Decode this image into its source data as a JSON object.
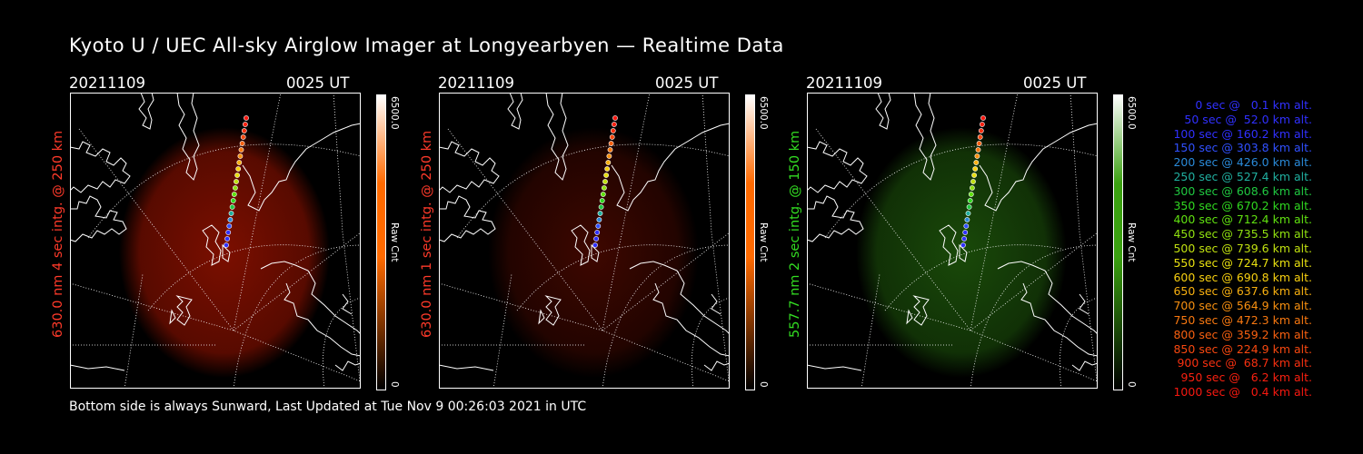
{
  "title": "Kyoto U / UEC All-sky Airglow Imager at Longyearbyen — Realtime Data",
  "footer": "Bottom side is always Sunward, Last Updated at Tue Nov  9 00:26:03 2021 in UTC",
  "panels": [
    {
      "date": "20211109",
      "time": "0025 UT",
      "ylabel": "630.0 nm 4 sec intg. @ 250 km",
      "label_color": "#ff3a2a",
      "cbar_max": "6500.0",
      "cbar_unit": "Raw Cnt",
      "cbar_min": "0",
      "glow_color": "#b01500",
      "glow_level": 0.5,
      "cbar_top_color": "#ff6a00"
    },
    {
      "date": "20211109",
      "time": "0025 UT",
      "ylabel": "630.0 nm 1 sec intg. @ 250 km",
      "label_color": "#ff3a2a",
      "cbar_max": "6500.0",
      "cbar_unit": "Raw Cnt",
      "cbar_min": "0",
      "glow_color": "#8a1000",
      "glow_level": 0.25,
      "cbar_top_color": "#ff6a00"
    },
    {
      "date": "20211109",
      "time": "0025 UT",
      "ylabel": "557.7 nm 2 sec intg. @ 150 km",
      "label_color": "#33dd22",
      "cbar_max": "6500.0",
      "cbar_unit": "Raw Cnt",
      "cbar_min": "0",
      "glow_color": "#2a7a10",
      "glow_level": 0.4,
      "cbar_top_color": "#3aa010"
    }
  ],
  "legend": [
    {
      "text": "0 sec @   0.1 km alt.",
      "color": "#3030ff"
    },
    {
      "text": "50 sec @  52.0 km alt.",
      "color": "#3030ff"
    },
    {
      "text": "100 sec @ 160.2 km alt.",
      "color": "#3030ff"
    },
    {
      "text": "150 sec @ 303.8 km alt.",
      "color": "#3050ff"
    },
    {
      "text": "200 sec @ 426.0 km alt.",
      "color": "#2a8ad8"
    },
    {
      "text": "250 sec @ 527.4 km alt.",
      "color": "#20b0a0"
    },
    {
      "text": "300 sec @ 608.6 km alt.",
      "color": "#20c840"
    },
    {
      "text": "350 sec @ 670.2 km alt.",
      "color": "#30d820"
    },
    {
      "text": "400 sec @ 712.4 km alt.",
      "color": "#60e010"
    },
    {
      "text": "450 sec @ 735.5 km alt.",
      "color": "#90e010"
    },
    {
      "text": "500 sec @ 739.6 km alt.",
      "color": "#c0e010"
    },
    {
      "text": "550 sec @ 724.7 km alt.",
      "color": "#e8e010"
    },
    {
      "text": "600 sec @ 690.8 km alt.",
      "color": "#f8d010"
    },
    {
      "text": "650 sec @ 637.6 km alt.",
      "color": "#f8b010"
    },
    {
      "text": "700 sec @ 564.9 km alt.",
      "color": "#f89010"
    },
    {
      "text": "750 sec @ 472.3 km alt.",
      "color": "#f87810"
    },
    {
      "text": "800 sec @ 359.2 km alt.",
      "color": "#f86010"
    },
    {
      "text": "850 sec @ 224.9 km alt.",
      "color": "#f84810"
    },
    {
      "text": "900 sec @  68.7 km alt.",
      "color": "#f83010"
    },
    {
      "text": "950 sec @   6.2 km alt.",
      "color": "#f82010"
    },
    {
      "text": "1000 sec @   0.4 km alt.",
      "color": "#f81810"
    }
  ]
}
